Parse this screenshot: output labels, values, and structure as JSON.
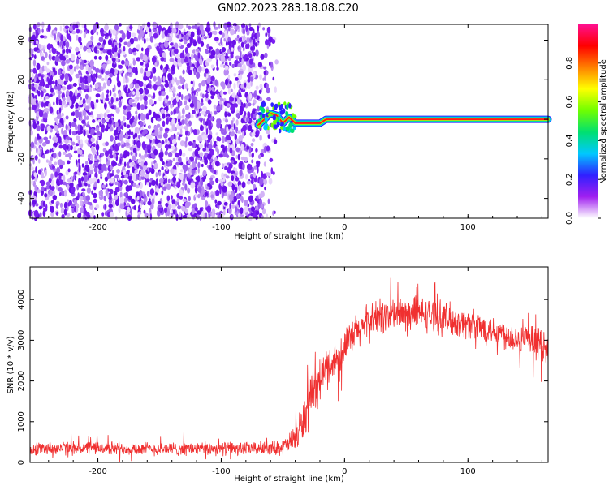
{
  "figure_title": "GN02.2023.283.18.08.C20",
  "colors": {
    "snr_line": "#f03030",
    "ridge_center": "#ff1a1a",
    "scatter": "#7a1ff0",
    "colormap": [
      "#ffffff",
      "#a020f0",
      "#3020ff",
      "#00c8ff",
      "#00e070",
      "#70ff00",
      "#ffff00",
      "#ff8000",
      "#ff0000",
      "#ff1090"
    ]
  },
  "chart_data": [
    {
      "type": "heatmap",
      "title": "",
      "xlabel": "Height of straight line (km)",
      "ylabel": "Frequency (Hz)",
      "xlim": [
        -255,
        165
      ],
      "ylim": [
        -50,
        48
      ],
      "xticks": [
        -200,
        -100,
        0,
        100
      ],
      "yticks": [
        -40,
        -20,
        0,
        20,
        40
      ],
      "noise_region_x": [
        -255,
        -55
      ],
      "transition_x": [
        -70,
        -40
      ],
      "ridge": {
        "x": [
          -70,
          -65,
          -60,
          -55,
          -50,
          -45,
          -40,
          -30,
          -20,
          -15,
          0,
          50,
          100,
          165
        ],
        "freq": [
          -3,
          0,
          3,
          2,
          -2,
          1,
          -2,
          -2,
          -2,
          0,
          0,
          0,
          0,
          0
        ]
      },
      "colorbar": {
        "label": "Normalized spectral amplitude",
        "ticks": [
          "0.0",
          "0.2",
          "0.4",
          "0.6",
          "0.8"
        ],
        "range": [
          0,
          1
        ]
      }
    },
    {
      "type": "line",
      "title": "",
      "xlabel": "Height of straight line (km)",
      "ylabel": "SNR (10 * v/v)",
      "xlim": [
        -255,
        165
      ],
      "ylim": [
        0,
        4800
      ],
      "xticks": [
        -200,
        -100,
        0,
        100
      ],
      "yticks": [
        0,
        1000,
        2000,
        3000,
        4000
      ],
      "series": [
        {
          "x": [
            -255,
            -200,
            -150,
            -100,
            -60,
            -50,
            -45,
            -40,
            -35,
            -30,
            -25,
            -20,
            -15,
            -10,
            -5,
            0,
            10,
            20,
            30,
            40,
            60,
            80,
            100,
            120,
            140,
            165
          ],
          "y": [
            350,
            350,
            330,
            340,
            350,
            380,
            450,
            600,
            900,
            1300,
            1700,
            2050,
            2300,
            2450,
            2600,
            2800,
            3200,
            3450,
            3600,
            3650,
            3650,
            3550,
            3400,
            3250,
            3050,
            2850
          ],
          "noise_amplitude": [
            200,
            200,
            200,
            200,
            200,
            250,
            300,
            450,
            600,
            700,
            700,
            650,
            600,
            550,
            550,
            550,
            550,
            550,
            550,
            550,
            500,
            500,
            450,
            450,
            450,
            500
          ]
        }
      ]
    }
  ]
}
